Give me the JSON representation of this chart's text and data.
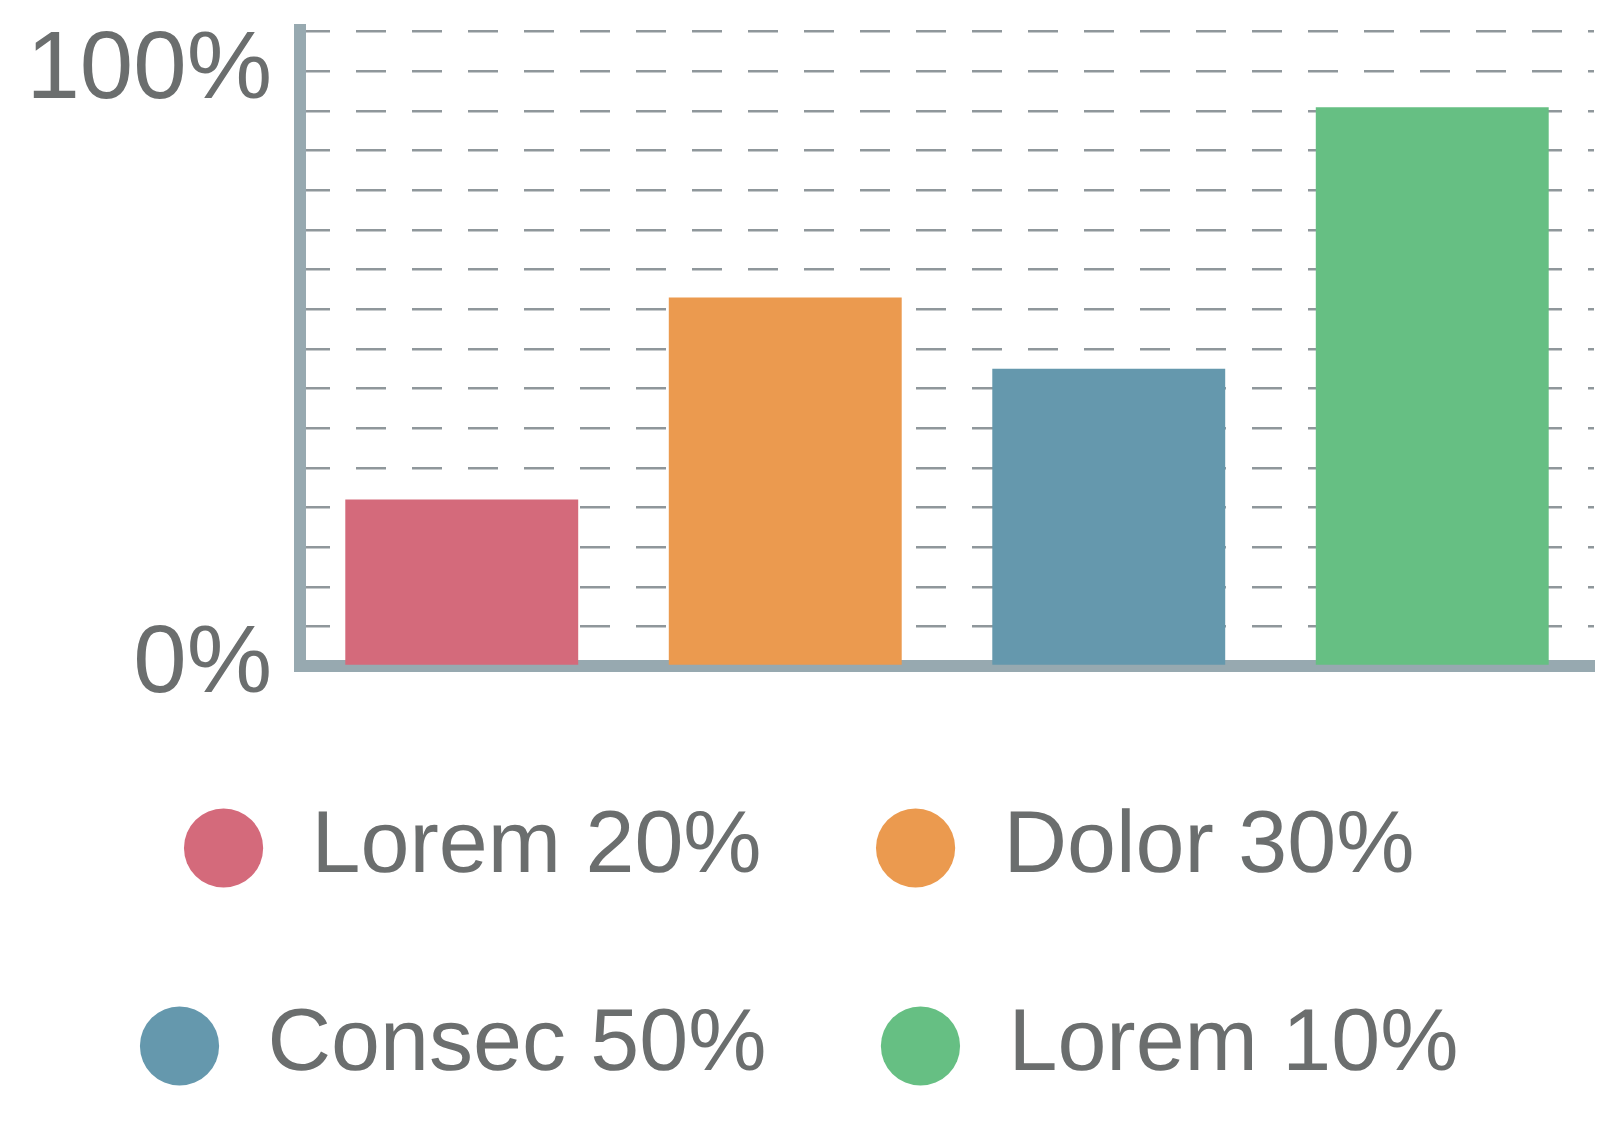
{
  "chart_data": {
    "type": "bar",
    "categories": [
      null,
      null,
      null,
      null
    ],
    "series": [
      {
        "name": "Lorem 20%",
        "color": "#d46a7b",
        "values": [
          28,
          null,
          null,
          null
        ]
      },
      {
        "name": "Dolor 30%",
        "color": "#eb9a4f",
        "values": [
          null,
          62,
          null,
          null
        ]
      },
      {
        "name": "Consec 50%",
        "color": "#6598ad",
        "values": [
          null,
          null,
          50,
          null
        ]
      },
      {
        "name": "Lorem 10%",
        "color": "#66bf83",
        "values": [
          null,
          null,
          null,
          94
        ]
      }
    ],
    "ylim": [
      0,
      108
    ],
    "yticks": [
      {
        "value": 0,
        "label": "0%"
      },
      {
        "value": 6.7,
        "label": null
      },
      {
        "value": 13.3,
        "label": null
      },
      {
        "value": 20,
        "label": null
      },
      {
        "value": 26.7,
        "label": null
      },
      {
        "value": 33.3,
        "label": null
      },
      {
        "value": 40,
        "label": null
      },
      {
        "value": 46.7,
        "label": null
      },
      {
        "value": 53.3,
        "label": null
      },
      {
        "value": 60,
        "label": null
      },
      {
        "value": 66.7,
        "label": null
      },
      {
        "value": 73.3,
        "label": null
      },
      {
        "value": 80,
        "label": null
      },
      {
        "value": 86.7,
        "label": null
      },
      {
        "value": 93.3,
        "label": null
      },
      {
        "value": 100,
        "label": "100%"
      },
      {
        "value": 106.7,
        "label": null
      }
    ],
    "grid": "y",
    "legend": "bottom",
    "tick_labels": "y"
  }
}
